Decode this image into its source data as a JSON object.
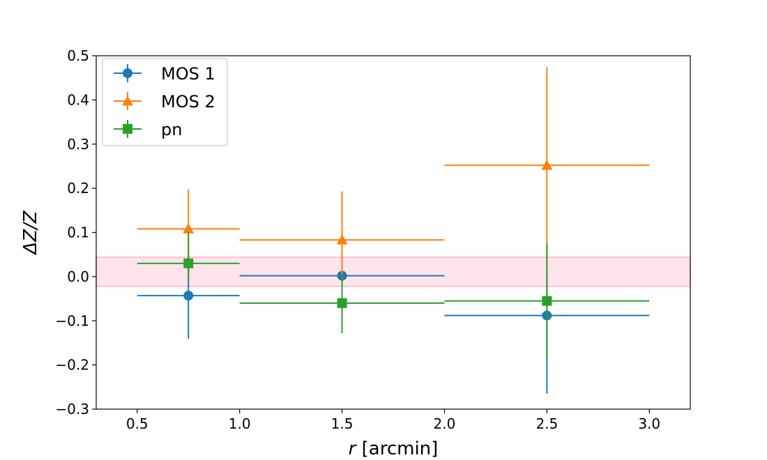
{
  "chart_data": {
    "type": "scatter",
    "title": "",
    "xlabel": {
      "var": "r",
      "unit": " [arcmin]"
    },
    "ylabel": "ΔZ/Z",
    "xlim": [
      0.3,
      3.2
    ],
    "ylim": [
      -0.3,
      0.5
    ],
    "x_ticks": [
      0.5,
      1.0,
      1.5,
      2.0,
      2.5,
      3.0
    ],
    "x_tick_labels": [
      "0.5",
      "1.0",
      "1.5",
      "2.0",
      "2.5",
      "3.0"
    ],
    "y_ticks": [
      -0.3,
      -0.2,
      -0.1,
      0.0,
      0.1,
      0.2,
      0.3,
      0.4,
      0.5
    ],
    "y_tick_labels": [
      "−0.3",
      "−0.2",
      "−0.1",
      "0.0",
      "0.1",
      "0.2",
      "0.3",
      "0.4",
      "0.5"
    ],
    "grid": false,
    "legend_position": "top-left",
    "band": {
      "y_low": -0.022,
      "y_high": 0.044,
      "fill": "#ffe4ec",
      "stroke": "#ffb3c1"
    },
    "series": [
      {
        "name": "MOS 1",
        "color": "#1f77b4",
        "marker": "circle",
        "points": [
          {
            "x": 0.75,
            "y": -0.043,
            "xerr_low": 0.5,
            "xerr_high": 1.0,
            "yerr_low": -0.141,
            "yerr_high": 0.055
          },
          {
            "x": 1.5,
            "y": 0.002,
            "xerr_low": 1.0,
            "xerr_high": 2.0,
            "yerr_low": -0.02,
            "yerr_high": 0.02
          },
          {
            "x": 2.5,
            "y": -0.088,
            "xerr_low": 2.0,
            "xerr_high": 3.0,
            "yerr_low": -0.265,
            "yerr_high": 0.02
          }
        ]
      },
      {
        "name": "MOS 2",
        "color": "#ff7f0e",
        "marker": "triangle",
        "points": [
          {
            "x": 0.75,
            "y": 0.108,
            "xerr_low": 0.5,
            "xerr_high": 1.0,
            "yerr_low": 0.02,
            "yerr_high": 0.197
          },
          {
            "x": 1.5,
            "y": 0.083,
            "xerr_low": 1.0,
            "xerr_high": 2.0,
            "yerr_low": -0.028,
            "yerr_high": 0.193
          },
          {
            "x": 2.5,
            "y": 0.252,
            "xerr_low": 2.0,
            "xerr_high": 3.0,
            "yerr_low": 0.03,
            "yerr_high": 0.474
          }
        ]
      },
      {
        "name": "pn",
        "color": "#2ca02c",
        "marker": "square",
        "points": [
          {
            "x": 0.75,
            "y": 0.03,
            "xerr_low": 0.5,
            "xerr_high": 1.0,
            "yerr_low": -0.01,
            "yerr_high": 0.1
          },
          {
            "x": 1.5,
            "y": -0.06,
            "xerr_low": 1.0,
            "xerr_high": 2.0,
            "yerr_low": -0.128,
            "yerr_high": 0.005
          },
          {
            "x": 2.5,
            "y": -0.055,
            "xerr_low": 2.0,
            "xerr_high": 3.0,
            "yerr_low": -0.19,
            "yerr_high": 0.077
          }
        ]
      }
    ]
  }
}
